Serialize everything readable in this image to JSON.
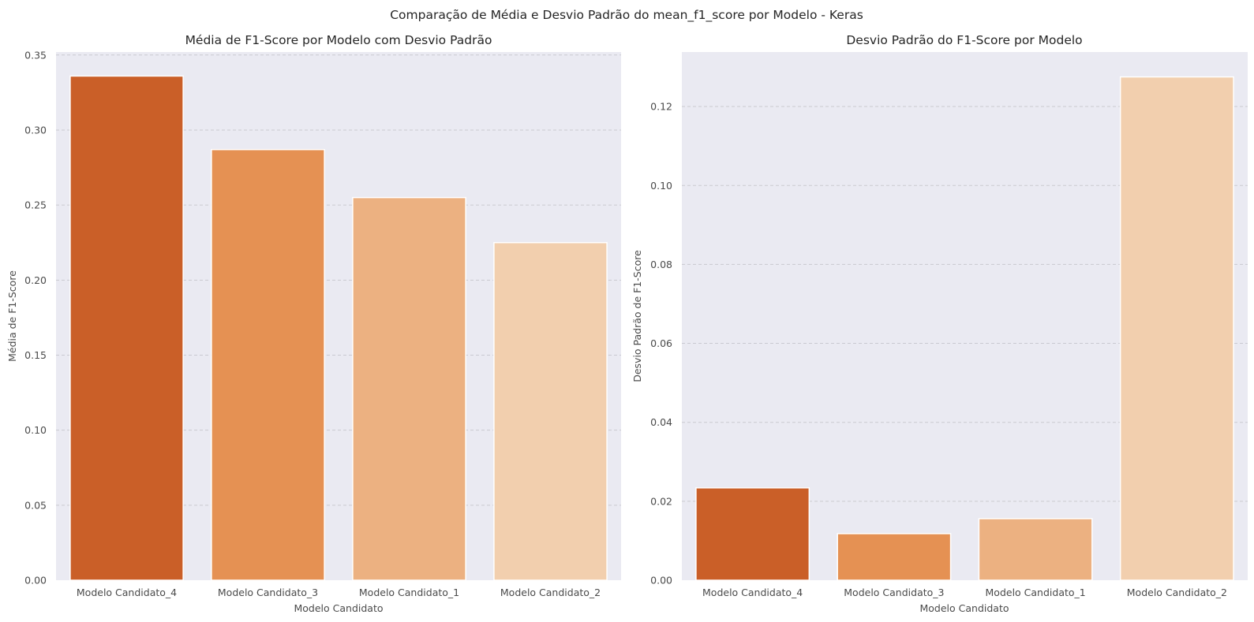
{
  "suptitle": "Comparação de Média e Desvio Padrão do mean_f1_score por Modelo - Keras",
  "colors": {
    "panel_bg": "#eaeaf2",
    "bars": [
      "#ca5f28",
      "#e59153",
      "#ecb181",
      "#f2cfae"
    ]
  },
  "chart_data": [
    {
      "type": "bar",
      "title": "Média de F1-Score por Modelo com Desvio Padrão",
      "xlabel": "Modelo Candidato",
      "ylabel": "Média de F1-Score",
      "categories": [
        "Modelo Candidato_4",
        "Modelo Candidato_3",
        "Modelo Candidato_1",
        "Modelo Candidato_2"
      ],
      "values": [
        0.336,
        0.287,
        0.255,
        0.225
      ],
      "ylim": [
        0,
        0.352
      ],
      "yticks": [
        0.0,
        0.05,
        0.1,
        0.15,
        0.2,
        0.25,
        0.3,
        0.35
      ],
      "ytick_labels": [
        "0.00",
        "0.05",
        "0.10",
        "0.15",
        "0.20",
        "0.25",
        "0.30",
        "0.35"
      ],
      "grid": "y-dashed"
    },
    {
      "type": "bar",
      "title": "Desvio Padrão do F1-Score por Modelo",
      "xlabel": "Modelo Candidato",
      "ylabel": "Desvio Padrão de F1-Score",
      "categories": [
        "Modelo Candidato_4",
        "Modelo Candidato_3",
        "Modelo Candidato_1",
        "Modelo Candidato_2"
      ],
      "values": [
        0.0234,
        0.0118,
        0.0156,
        0.1275
      ],
      "ylim": [
        0,
        0.1338
      ],
      "yticks": [
        0.0,
        0.02,
        0.04,
        0.06,
        0.08,
        0.1,
        0.12
      ],
      "ytick_labels": [
        "0.00",
        "0.02",
        "0.04",
        "0.06",
        "0.08",
        "0.10",
        "0.12"
      ],
      "grid": "y-dashed"
    }
  ]
}
